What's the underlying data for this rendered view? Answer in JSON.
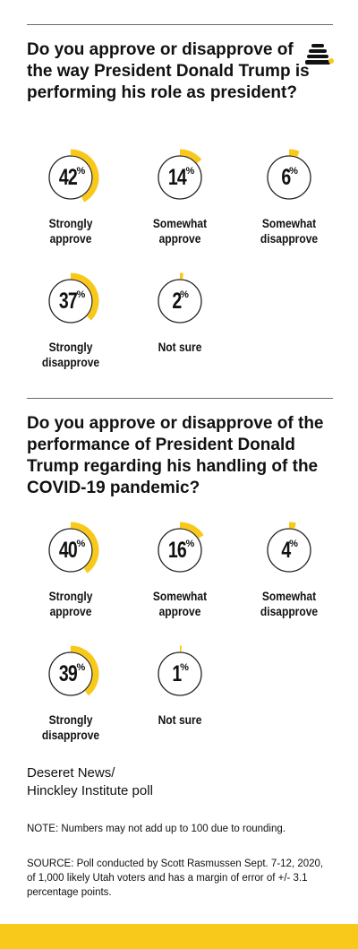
{
  "colors": {
    "accent": "#f8c91a",
    "ring": "#222222",
    "rule": "#6a6a6a"
  },
  "logo_icon": "beehive-icon",
  "chart_data": [
    {
      "type": "pie",
      "title": "Do you approve or disapprove of the way President Donald Trump is performing his role as president?",
      "categories": [
        "Strongly approve",
        "Somewhat approve",
        "Somewhat disapprove",
        "Strongly disapprove",
        "Not sure"
      ],
      "values": [
        42,
        14,
        6,
        37,
        2
      ],
      "unit": "%"
    },
    {
      "type": "pie",
      "title": "Do you approve or disapprove of the performance of President Donald Trump regarding his handling of the COVID-19 pandemic?",
      "categories": [
        "Strongly approve",
        "Somewhat approve",
        "Somewhat disapprove",
        "Strongly disapprove",
        "Not sure"
      ],
      "values": [
        40,
        16,
        4,
        39,
        1
      ],
      "unit": "%"
    }
  ],
  "charts": [
    {
      "title": "Do you approve or disapprove of the way President Donald Trump is performing his role as president?",
      "items": [
        {
          "value": 42,
          "sign": "%",
          "label_lines": [
            "Strongly",
            "approve"
          ]
        },
        {
          "value": 14,
          "sign": "%",
          "label_lines": [
            "Somewhat",
            "approve"
          ]
        },
        {
          "value": 6,
          "sign": "%",
          "label_lines": [
            "Somewhat",
            "disapprove"
          ]
        },
        {
          "value": 37,
          "sign": "%",
          "label_lines": [
            "Strongly",
            "disapprove"
          ]
        },
        {
          "value": 2,
          "sign": "%",
          "label_lines": [
            "Not sure"
          ]
        }
      ]
    },
    {
      "title": "Do you approve or disapprove of the performance of President Donald Trump regarding his handling of the COVID-19 pandemic?",
      "items": [
        {
          "value": 40,
          "sign": "%",
          "label_lines": [
            "Strongly",
            "approve"
          ]
        },
        {
          "value": 16,
          "sign": "%",
          "label_lines": [
            "Somewhat",
            "approve"
          ]
        },
        {
          "value": 4,
          "sign": "%",
          "label_lines": [
            "Somewhat",
            "disapprove"
          ]
        },
        {
          "value": 39,
          "sign": "%",
          "label_lines": [
            "Strongly",
            "disapprove"
          ]
        },
        {
          "value": 1,
          "sign": "%",
          "label_lines": [
            "Not sure"
          ]
        }
      ]
    }
  ],
  "footer": {
    "credit_line1": "Deseret News/",
    "credit_line2": "Hinckley Institute poll",
    "note": "NOTE: Numbers may not add up to 100 due to rounding.",
    "source": "SOURCE: Poll conducted by Scott Rasmussen Sept. 7-12, 2020, of 1,000 likely Utah voters and has a margin of error of +/- 3.1 percentage points."
  }
}
